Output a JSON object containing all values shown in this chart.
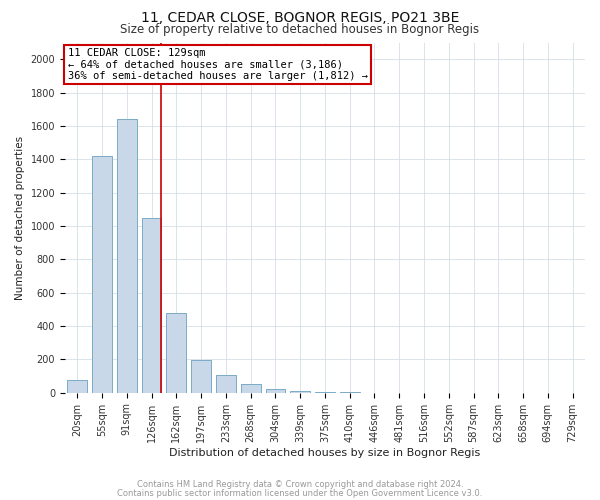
{
  "title": "11, CEDAR CLOSE, BOGNOR REGIS, PO21 3BE",
  "subtitle": "Size of property relative to detached houses in Bognor Regis",
  "xlabel": "Distribution of detached houses by size in Bognor Regis",
  "ylabel": "Number of detached properties",
  "footnote1": "Contains HM Land Registry data © Crown copyright and database right 2024.",
  "footnote2": "Contains public sector information licensed under the Open Government Licence v3.0.",
  "annotation_line1": "11 CEDAR CLOSE: 129sqm",
  "annotation_line2": "← 64% of detached houses are smaller (3,186)",
  "annotation_line3": "36% of semi-detached houses are larger (1,812) →",
  "categories": [
    "20sqm",
    "55sqm",
    "91sqm",
    "126sqm",
    "162sqm",
    "197sqm",
    "233sqm",
    "268sqm",
    "304sqm",
    "339sqm",
    "375sqm",
    "410sqm",
    "446sqm",
    "481sqm",
    "516sqm",
    "552sqm",
    "587sqm",
    "623sqm",
    "658sqm",
    "694sqm",
    "729sqm"
  ],
  "values": [
    75,
    1420,
    1640,
    1050,
    480,
    195,
    105,
    55,
    20,
    8,
    3,
    2,
    1,
    1,
    0,
    0,
    0,
    0,
    0,
    0,
    0
  ],
  "bar_color": "#c8d8e8",
  "bar_edge_color": "#7aaac8",
  "vline_color": "#cc0000",
  "vline_x": 3.4,
  "annotation_box_color": "#ffffff",
  "annotation_box_edge_color": "#cc0000",
  "ylim": [
    0,
    2100
  ],
  "yticks": [
    0,
    200,
    400,
    600,
    800,
    1000,
    1200,
    1400,
    1600,
    1800,
    2000
  ],
  "grid_color": "#d5dfe8",
  "background_color": "#ffffff",
  "title_fontsize": 10,
  "subtitle_fontsize": 8.5,
  "xlabel_fontsize": 8,
  "ylabel_fontsize": 7.5,
  "tick_fontsize": 7,
  "annotation_fontsize": 7.5,
  "footnote_fontsize": 6
}
